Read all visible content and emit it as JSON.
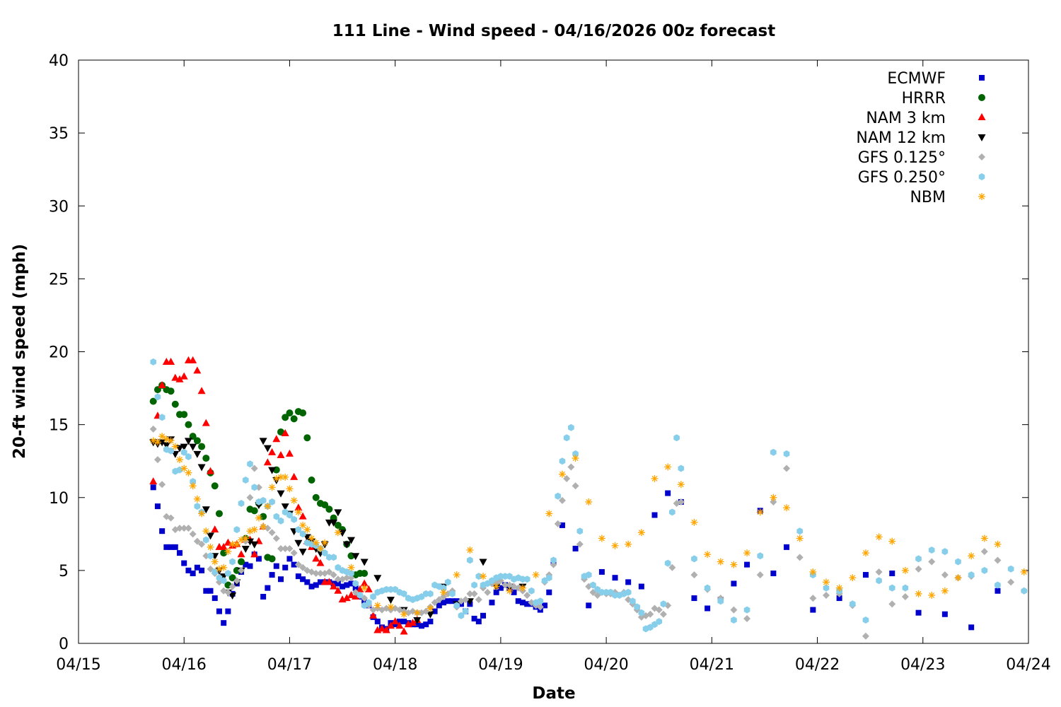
{
  "chart_data": {
    "type": "scatter",
    "title": "111 Line - Wind speed - 04/16/2026 00z forecast",
    "xlabel": "Date",
    "ylabel": "20-ft wind speed (mph)",
    "x_units": "hours since 04/15 00z",
    "xlim": [
      0,
      216
    ],
    "ylim": [
      0,
      40
    ],
    "x_ticks": [
      {
        "value": 0,
        "label": "04/15"
      },
      {
        "value": 24,
        "label": "04/16"
      },
      {
        "value": 48,
        "label": "04/17"
      },
      {
        "value": 72,
        "label": "04/18"
      },
      {
        "value": 96,
        "label": "04/19"
      },
      {
        "value": 120,
        "label": "04/20"
      },
      {
        "value": 144,
        "label": "04/21"
      },
      {
        "value": 168,
        "label": "04/22"
      },
      {
        "value": 192,
        "label": "04/23"
      },
      {
        "value": 216,
        "label": "04/24"
      }
    ],
    "y_ticks": [
      {
        "value": 0,
        "label": "0"
      },
      {
        "value": 5,
        "label": "5"
      },
      {
        "value": 10,
        "label": "10"
      },
      {
        "value": 15,
        "label": "15"
      },
      {
        "value": 20,
        "label": "20"
      },
      {
        "value": 25,
        "label": "25"
      },
      {
        "value": 30,
        "label": "30"
      },
      {
        "value": 35,
        "label": "35"
      },
      {
        "value": 40,
        "label": "40"
      }
    ],
    "grid": false,
    "legend_position": "top-right",
    "series": [
      {
        "name": "ECMWF",
        "marker": "square",
        "color": "#0000cc",
        "segments": [
          {
            "x0": 17,
            "dx": 1,
            "y": [
              10.7,
              9.4,
              7.7,
              6.6,
              6.6,
              6.6,
              6.2,
              5.5,
              5.0,
              4.8,
              5.2,
              5.0,
              3.6,
              3.6,
              3.1,
              2.2,
              1.4,
              2.2,
              3.4,
              4.1,
              4.9,
              5.4,
              5.3,
              6.1,
              5.8,
              3.2,
              3.8,
              4.7,
              5.3,
              4.4,
              5.2,
              5.8,
              5.4,
              4.6,
              4.4,
              4.2,
              3.9,
              4.0,
              4.2,
              4.2,
              4.2,
              4.1,
              4.1,
              3.9,
              4.0,
              4.1,
              3.8,
              3.2,
              2.8,
              2.6,
              1.8,
              1.5,
              1.1,
              1.0,
              1.4,
              1.3,
              1.5,
              1.5,
              1.4,
              1.3,
              1.3,
              1.2,
              1.3,
              1.5,
              2.2,
              2.6,
              2.8,
              2.9,
              2.9,
              2.9,
              2.7,
              2.2,
              2.7,
              1.7,
              1.5,
              1.9
            ]
          },
          {
            "x0": 94,
            "dx": 1,
            "y": [
              2.8,
              3.5,
              3.8,
              4.0,
              3.8,
              3.5,
              2.9,
              2.8,
              2.7,
              2.7,
              2.5,
              2.3,
              2.6,
              3.5,
              5.6
            ]
          },
          {
            "x0": 110,
            "dx": 3,
            "y": [
              8.1,
              6.5,
              2.6,
              4.9,
              4.5,
              4.2,
              3.9,
              8.8,
              10.3,
              9.7,
              3.1,
              2.4,
              3.0,
              4.1,
              5.4,
              9.1,
              4.8,
              6.6
            ]
          },
          {
            "x0": 167,
            "dx": 6,
            "y": [
              2.3,
              3.1,
              4.7,
              4.8,
              2.1,
              2.0,
              1.1,
              3.6
            ]
          }
        ]
      },
      {
        "name": "HRRR",
        "marker": "circle",
        "color": "#006400",
        "segments": [
          {
            "x0": 17,
            "dx": 1,
            "y": [
              16.6,
              17.4,
              17.7,
              17.4,
              17.3,
              16.4,
              15.7,
              15.7,
              15.0,
              14.2,
              13.9,
              13.5,
              12.7,
              11.7,
              10.8,
              8.9,
              6.2,
              4.0,
              4.5,
              5.0,
              5.6,
              7.2,
              9.2,
              9.1,
              9.6,
              8.7,
              5.9,
              5.8,
              11.9,
              14.5,
              15.5,
              15.8,
              15.4,
              15.9,
              15.8,
              14.1,
              11.2,
              10.0,
              9.6,
              9.5,
              9.2,
              8.6,
              8.1,
              7.8,
              6.8,
              6.0,
              4.7,
              4.8,
              4.8
            ]
          }
        ]
      },
      {
        "name": "NAM 3 km",
        "marker": "triangle-up",
        "color": "#ff0000",
        "segments": [
          {
            "x0": 17,
            "dx": 1,
            "y": [
              11.1,
              15.6,
              17.7,
              19.3,
              19.3,
              18.2,
              18.1,
              18.3,
              19.4,
              19.4,
              18.7,
              17.3,
              15.1,
              11.8,
              7.8,
              6.6,
              6.6,
              6.9,
              6.7,
              6.8,
              6.1,
              7.1,
              7.1,
              6.1,
              7.0,
              8.0,
              12.4,
              13.1,
              14.0,
              12.9,
              14.4,
              13.0,
              11.4,
              9.3,
              8.7,
              7.0,
              6.6,
              5.8,
              5.5,
              4.2,
              4.2,
              3.9,
              3.6,
              3.0,
              3.1,
              3.3,
              3.2,
              3.7,
              4.1,
              3.7,
              1.9,
              0.9,
              1.0,
              0.9,
              1.2,
              1.5,
              1.2,
              0.8,
              1.3,
              1.4,
              1.6
            ]
          }
        ]
      },
      {
        "name": "NAM 12 km",
        "marker": "triangle-down",
        "color": "#000000",
        "segments": [
          {
            "x0": 17,
            "dx": 1,
            "y": [
              13.8,
              13.7,
              13.8,
              13.6,
              14.0,
              13.0,
              13.4,
              13.5,
              13.9,
              13.5,
              13.0,
              12.1,
              9.2,
              7.4,
              6.0,
              5.0,
              4.6,
              3.5,
              3.3,
              4.2,
              5.0,
              6.5,
              7.0,
              6.8,
              9.5,
              13.9,
              13.4,
              11.9,
              11.2,
              10.3,
              9.4,
              8.9,
              7.7,
              6.9,
              6.3,
              7.3,
              7.0,
              6.5,
              6.2,
              6.8,
              8.3,
              8.3,
              9.0,
              7.6,
              6.8,
              7.1,
              6.0
            ]
          },
          {
            "x0": 65,
            "dx": 3,
            "y": [
              5.6,
              4.5,
              3.0,
              2.3,
              1.6,
              2.0,
              3.9,
              2.7,
              2.9,
              5.6,
              3.9,
              3.9,
              3.9
            ]
          }
        ]
      },
      {
        "name": "GFS 0.125°",
        "marker": "diamond",
        "color": "#b0b0b0",
        "segments": [
          {
            "x0": 17,
            "dx": 1,
            "y": [
              14.7,
              12.6,
              10.9,
              8.7,
              8.6,
              7.8,
              7.9,
              7.9,
              7.9,
              7.5,
              7.0,
              6.8,
              6.0,
              5.1,
              4.8,
              4.2,
              3.6,
              3.5,
              3.9,
              4.3,
              5.0,
              7.0,
              10.0,
              12.0,
              10.7,
              8.0,
              7.9,
              7.6,
              7.2,
              6.5,
              6.5,
              6.5,
              6.2,
              5.4,
              5.2,
              5.0,
              4.9,
              4.8,
              4.8,
              4.8,
              4.9,
              4.7,
              4.4,
              4.4,
              4.5,
              4.5,
              3.5,
              3.3,
              3.1,
              2.6,
              2.3,
              2.4,
              2.3,
              2.4,
              2.3,
              2.4,
              2.3,
              2.2,
              2.1,
              2.2,
              2.1,
              2.1,
              2.2,
              2.5,
              2.8,
              3.0,
              3.2,
              3.4,
              3.6,
              2.5,
              2.9,
              3.0,
              3.4,
              3.4,
              3.0,
              3.8,
              3.5,
              4.1,
              4.2,
              4.3,
              4.0,
              4.0,
              3.9,
              3.8,
              3.6,
              3.3,
              2.8,
              2.6,
              2.5,
              4.2,
              4.7,
              5.4,
              8.2,
              9.8,
              11.3,
              12.1,
              10.8,
              6.8,
              4.4,
              3.9,
              3.5,
              3.3,
              3.5,
              3.4,
              3.4,
              3.5,
              3.3,
              3.5,
              3.0,
              2.7,
              2.3,
              1.8,
              1.9,
              2.0,
              2.4,
              2.3,
              2.0,
              2.6,
              5.2,
              9.6,
              9.7
            ]
          },
          {
            "x0": 140,
            "dx": 3,
            "y": [
              4.7,
              3.7,
              3.1,
              2.3,
              1.7,
              4.7,
              9.7,
              12.0,
              5.9,
              3.1,
              3.3,
              3.4,
              2.6,
              0.5,
              4.9,
              2.7,
              3.2,
              5.1,
              5.6,
              4.7,
              4.5,
              4.6,
              6.3,
              5.7,
              4.2,
              3.6
            ]
          }
        ]
      },
      {
        "name": "GFS 0.250°",
        "marker": "hexagon",
        "color": "#87ceeb",
        "segments": [
          {
            "x0": 17,
            "dx": 1,
            "y": [
              19.3,
              16.9,
              15.5,
              13.3,
              13.2,
              11.8,
              11.9,
              13.1,
              12.8,
              11.1,
              9.4,
              9.0,
              7.1,
              6.0,
              4.9,
              4.5,
              4.3,
              4.8,
              5.6,
              7.8,
              9.6,
              11.2,
              12.3,
              10.7,
              9.7,
              9.8,
              9.4,
              9.7,
              8.7,
              8.4,
              9.0,
              8.8,
              8.5,
              7.8,
              7.5,
              6.9,
              6.8,
              6.7,
              6.5,
              6.2,
              5.9,
              5.9,
              5.2,
              5.0,
              4.9,
              4.8,
              4.1,
              3.3,
              2.6,
              2.8,
              3.2,
              3.5,
              3.6,
              3.7,
              3.7,
              3.7,
              3.5,
              3.4,
              3.1,
              3.0,
              3.1,
              3.2,
              3.4,
              3.4,
              4.0,
              3.9,
              3.8,
              4.2,
              3.4,
              2.6,
              1.9,
              2.2,
              5.7,
              4.0,
              4.6,
              4.0,
              4.1,
              4.3,
              4.5,
              4.6,
              4.6,
              4.6,
              4.4,
              4.5,
              4.4,
              4.4,
              3.6,
              2.8,
              2.9,
              4.3,
              4.5,
              5.7,
              10.1,
              12.5,
              14.1,
              14.8,
              13.0,
              7.7,
              4.6,
              4.7,
              4.0,
              3.7,
              3.5,
              3.5,
              3.5,
              3.3,
              3.3,
              3.4,
              3.5,
              2.9,
              2.5,
              2.1,
              1.0,
              1.1,
              1.3,
              1.5,
              2.7,
              5.5,
              9.0,
              14.1,
              12.0
            ]
          },
          {
            "x0": 140,
            "dx": 3,
            "y": [
              5.8,
              3.8,
              2.9,
              1.6,
              2.3,
              6.0,
              13.1,
              13.0,
              7.7,
              4.7,
              3.8,
              3.6,
              2.7,
              1.6,
              4.3,
              3.8,
              3.8,
              5.8,
              6.4,
              6.3,
              5.6,
              4.7,
              5.0,
              4.0,
              5.1,
              3.6
            ]
          }
        ]
      },
      {
        "name": "NBM",
        "marker": "asterisk",
        "color": "#ffa500",
        "segments": [
          {
            "x0": 17,
            "dx": 1,
            "y": [
              13.9,
              13.8,
              14.2,
              14.0,
              13.9,
              13.5,
              12.6,
              12.0,
              11.7,
              10.8,
              9.9,
              8.9,
              7.7,
              6.6,
              5.6,
              5.1,
              5.2,
              6.3,
              6.8,
              6.8,
              7.1,
              7.2,
              7.7,
              7.8,
              8.6,
              8.0,
              9.4,
              10.7,
              11.3,
              11.4,
              11.4,
              10.6,
              9.8,
              9.0,
              8.1,
              7.8,
              7.2,
              6.9,
              6.5,
              6.9
            ]
          },
          {
            "x0": 59,
            "dx": 3,
            "y": [
              7.6,
              5.2,
              3.8,
              2.6,
              2.5,
              2.0,
              2.1,
              2.4,
              3.5,
              4.7,
              6.4,
              4.6,
              3.9,
              3.6,
              3.8,
              4.7,
              8.9,
              11.6,
              12.7,
              9.7,
              7.2,
              6.7,
              6.8,
              7.6,
              11.3,
              12.1,
              10.9,
              8.3,
              6.1,
              5.6,
              5.4,
              6.2,
              9.0,
              10.0,
              9.3,
              7.2,
              4.9,
              4.2,
              3.8,
              4.5,
              6.2,
              7.3,
              7.0,
              5.0,
              3.4,
              3.3,
              3.6,
              4.5,
              6.0,
              7.2,
              6.8,
              null,
              4.9
            ]
          }
        ]
      }
    ]
  }
}
